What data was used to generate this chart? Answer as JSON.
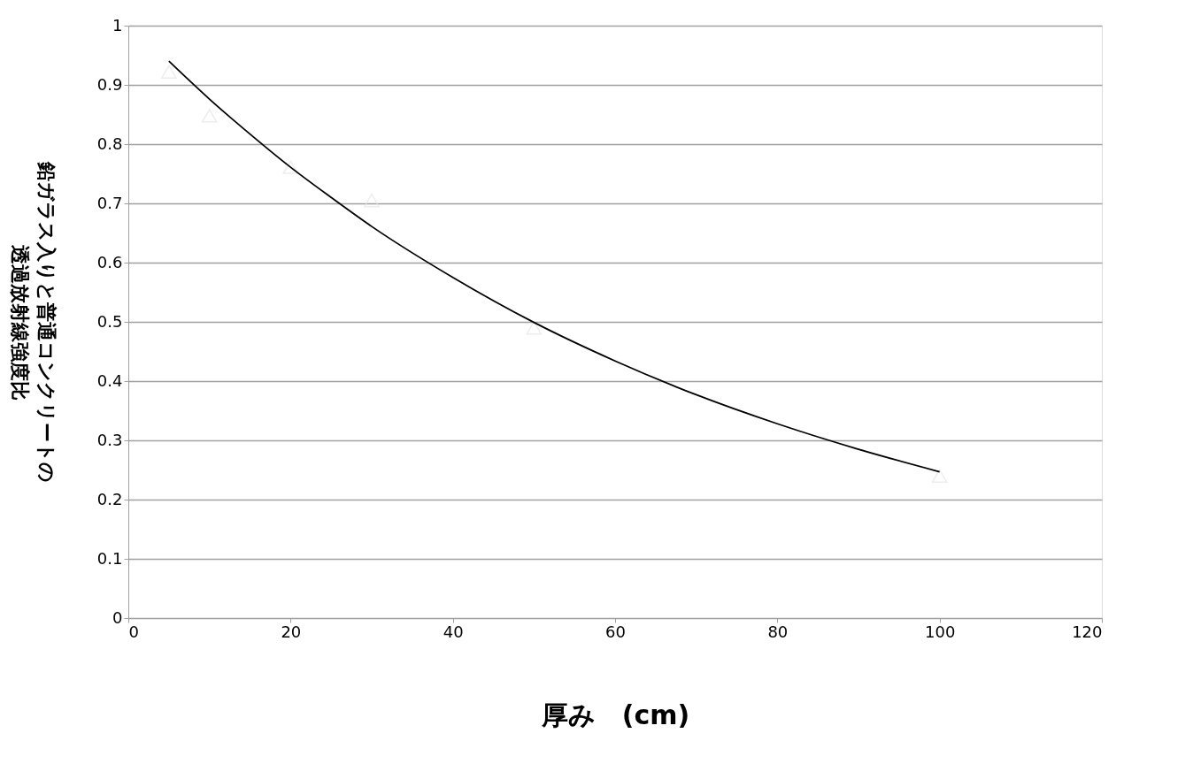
{
  "chart_data": {
    "type": "scatter",
    "xlabel": "厚み　(cm)",
    "ylabel": "鉛ガラス入りと普通コンクリートの透過放射線強度比",
    "xlim": [
      0,
      120
    ],
    "xticks": [
      0,
      20,
      40,
      60,
      80,
      100,
      120
    ],
    "ylim": [
      0,
      1
    ],
    "yticks": [
      0,
      0.1,
      0.2,
      0.3,
      0.4,
      0.5,
      0.6,
      0.7,
      0.8,
      0.9,
      1
    ],
    "grid": "y",
    "legend": false,
    "series": [
      {
        "type": "scatter",
        "marker": "triangle",
        "color": "#e6e6e6",
        "x": [
          5,
          10,
          20,
          30,
          50,
          100
        ],
        "values": [
          0.922,
          0.848,
          0.761,
          0.705,
          0.49,
          0.24
        ]
      },
      {
        "type": "line",
        "marker": "none",
        "line_style": "solid",
        "color": "#000000",
        "x": [
          5,
          10,
          15,
          20,
          25,
          30,
          40,
          50,
          60,
          70,
          80,
          90,
          100
        ],
        "values": [
          0.94,
          0.876,
          0.817,
          0.761,
          0.71,
          0.661,
          0.575,
          0.499,
          0.434,
          0.377,
          0.328,
          0.285,
          0.247
        ]
      }
    ]
  }
}
